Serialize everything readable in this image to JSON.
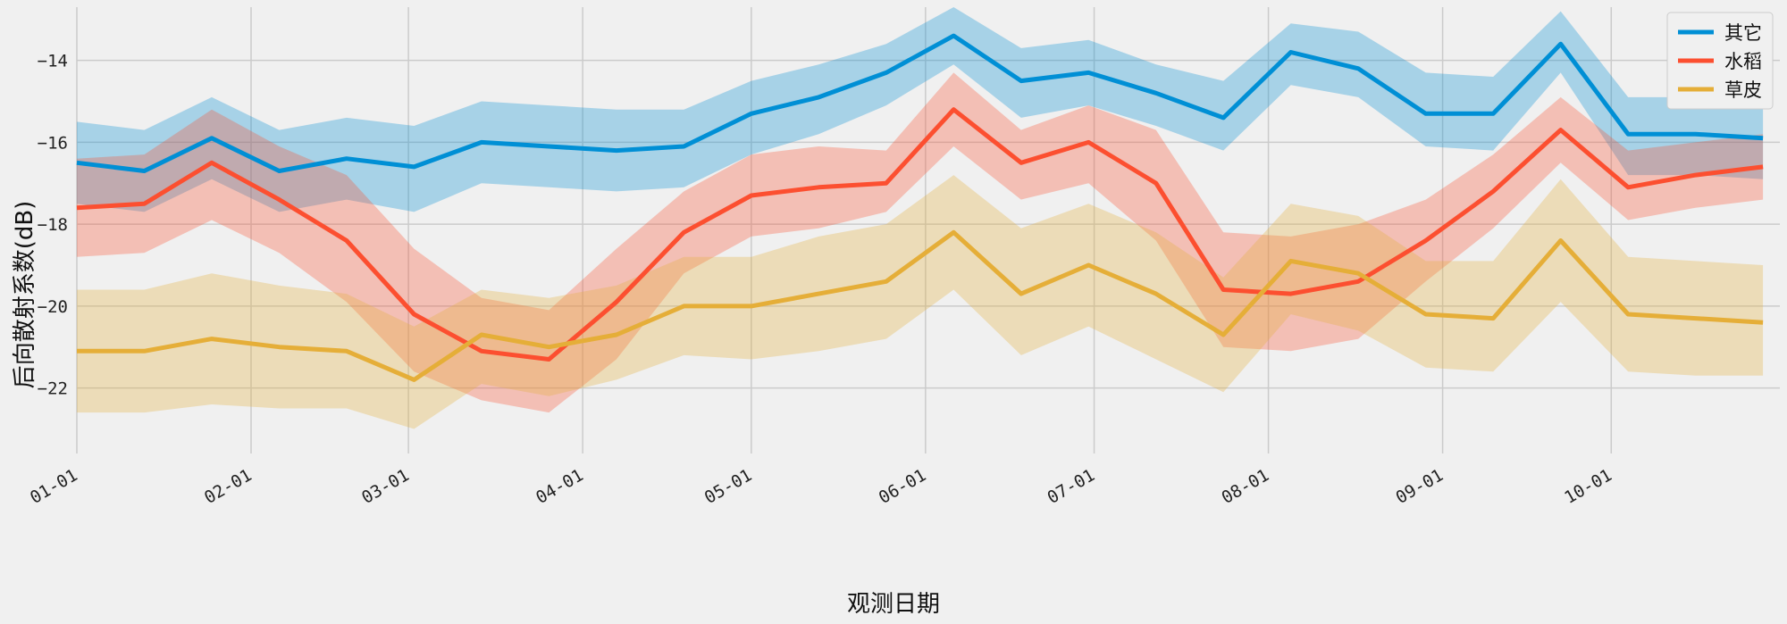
{
  "chart_data": {
    "type": "line",
    "xlabel": "观测日期",
    "ylabel": "后向散射系数(dB)",
    "x": [
      "01-01",
      "01-13",
      "01-25",
      "02-06",
      "02-18",
      "03-02",
      "03-14",
      "03-26",
      "04-07",
      "04-19",
      "05-01",
      "05-13",
      "05-25",
      "06-06",
      "06-18",
      "06-30",
      "07-12",
      "07-24",
      "08-05",
      "08-17",
      "08-29",
      "09-10",
      "09-22",
      "10-04",
      "10-16",
      "10-28"
    ],
    "xlim": [
      "01-01",
      "10-31"
    ],
    "ylim": [
      -23.6,
      -12.7
    ],
    "yticks": [
      -22,
      -20,
      -18,
      -16,
      -14
    ],
    "xticks": [
      "01-01",
      "02-01",
      "03-01",
      "04-01",
      "05-01",
      "06-01",
      "07-01",
      "08-01",
      "09-01",
      "10-01"
    ],
    "grid": true,
    "legend_position": "top-right",
    "series": [
      {
        "name": "其它",
        "color": "#008fd5",
        "values": [
          -16.5,
          -16.7,
          -15.9,
          -16.7,
          -16.4,
          -16.6,
          -16.0,
          -16.1,
          -16.2,
          -16.1,
          -15.3,
          -14.9,
          -14.3,
          -13.4,
          -14.5,
          -14.3,
          -14.8,
          -15.4,
          -13.8,
          -14.2,
          -15.3,
          -15.3,
          -13.6,
          -15.8,
          -15.8,
          -15.9
        ],
        "lower": [
          -17.5,
          -17.7,
          -16.9,
          -17.7,
          -17.4,
          -17.7,
          -17.0,
          -17.1,
          -17.2,
          -17.1,
          -16.3,
          -15.8,
          -15.1,
          -14.1,
          -15.4,
          -15.1,
          -15.6,
          -16.2,
          -14.6,
          -14.9,
          -16.1,
          -16.2,
          -14.3,
          -16.8,
          -16.8,
          -16.9
        ],
        "upper": [
          -15.5,
          -15.7,
          -14.9,
          -15.7,
          -15.4,
          -15.6,
          -15.0,
          -15.1,
          -15.2,
          -15.2,
          -14.5,
          -14.1,
          -13.6,
          -12.7,
          -13.7,
          -13.5,
          -14.1,
          -14.5,
          -13.1,
          -13.3,
          -14.3,
          -14.4,
          -12.8,
          -14.9,
          -14.9,
          -14.9
        ]
      },
      {
        "name": "水稻",
        "color": "#fc4f30",
        "values": [
          -17.6,
          -17.5,
          -16.5,
          -17.4,
          -18.4,
          -20.2,
          -21.1,
          -21.3,
          -19.9,
          -18.2,
          -17.3,
          -17.1,
          -17.0,
          -15.2,
          -16.5,
          -16.0,
          -17.0,
          -19.6,
          -19.7,
          -19.4,
          -18.4,
          -17.2,
          -15.7,
          -17.1,
          -16.8,
          -16.6
        ],
        "lower": [
          -18.8,
          -18.7,
          -17.9,
          -18.7,
          -19.9,
          -21.6,
          -22.3,
          -22.6,
          -21.3,
          -19.2,
          -18.3,
          -18.1,
          -17.7,
          -16.1,
          -17.4,
          -17.0,
          -18.4,
          -21.0,
          -21.1,
          -20.8,
          -19.4,
          -18.1,
          -16.5,
          -17.9,
          -17.6,
          -17.4
        ],
        "upper": [
          -16.4,
          -16.3,
          -15.2,
          -16.1,
          -16.8,
          -18.6,
          -19.8,
          -20.1,
          -18.6,
          -17.2,
          -16.3,
          -16.1,
          -16.2,
          -14.3,
          -15.7,
          -15.1,
          -15.7,
          -18.2,
          -18.3,
          -18.0,
          -17.4,
          -16.3,
          -14.9,
          -16.2,
          -16.0,
          -15.8
        ]
      },
      {
        "name": "草皮",
        "color": "#e5ae38",
        "values": [
          -21.1,
          -21.1,
          -20.8,
          -21.0,
          -21.1,
          -21.8,
          -20.7,
          -21.0,
          -20.7,
          -20.0,
          -20.0,
          -19.7,
          -19.4,
          -18.2,
          -19.7,
          -19.0,
          -19.7,
          -20.7,
          -18.9,
          -19.2,
          -20.2,
          -20.3,
          -18.4,
          -20.2,
          -20.3,
          -20.4
        ],
        "lower": [
          -22.6,
          -22.6,
          -22.4,
          -22.5,
          -22.5,
          -23.0,
          -21.9,
          -22.2,
          -21.8,
          -21.2,
          -21.3,
          -21.1,
          -20.8,
          -19.6,
          -21.2,
          -20.5,
          -21.3,
          -22.1,
          -20.2,
          -20.6,
          -21.5,
          -21.6,
          -19.9,
          -21.6,
          -21.7,
          -21.7
        ],
        "upper": [
          -19.6,
          -19.6,
          -19.2,
          -19.5,
          -19.7,
          -20.5,
          -19.6,
          -19.8,
          -19.5,
          -18.8,
          -18.8,
          -18.3,
          -18.0,
          -16.8,
          -18.1,
          -17.5,
          -18.2,
          -19.3,
          -17.5,
          -17.8,
          -18.9,
          -18.9,
          -16.9,
          -18.8,
          -18.9,
          -19.0
        ]
      }
    ]
  }
}
